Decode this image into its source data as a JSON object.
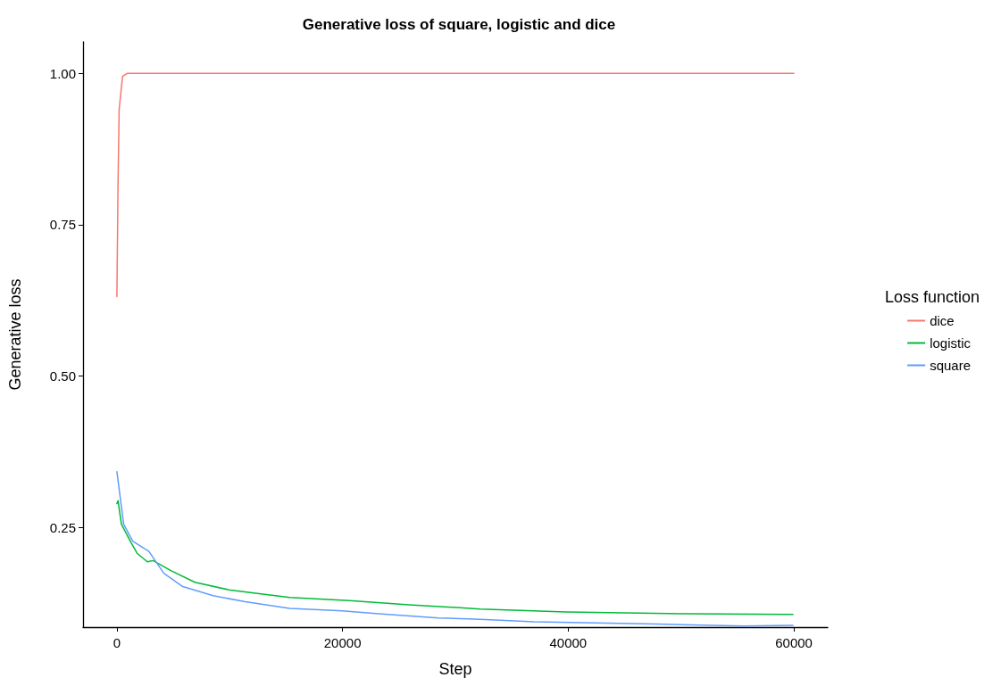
{
  "chart_data": {
    "type": "line",
    "title": "Generative loss of square, logistic and dice",
    "xlabel": "Step",
    "ylabel": "Generative loss",
    "legend_title": "Loss function",
    "legend": "right",
    "grid": false,
    "marker": "none",
    "line_style": "solid",
    "xlim": [
      -3000,
      63000
    ],
    "xticks": [
      0,
      20000,
      40000,
      60000
    ],
    "ylim": [
      0.085,
      1.052
    ],
    "yticks": [
      {
        "value": 0.25,
        "label": "0.25"
      },
      {
        "value": 0.5,
        "label": "0.50"
      },
      {
        "value": 0.75,
        "label": "0.75"
      },
      {
        "value": 1,
        "label": "1.00"
      }
    ],
    "series": [
      {
        "name": "dice",
        "color": "#f8766d",
        "x": [
          0,
          100,
          200,
          500,
          900,
          2000,
          60000
        ],
        "values": [
          0.631,
          0.816,
          0.94,
          0.995,
          1.0,
          1.0,
          1.0
        ]
      },
      {
        "name": "logistic",
        "color": "#00ba38",
        "x": [
          0,
          100,
          400,
          1250,
          1790,
          2700,
          3200,
          4820,
          6920,
          10080,
          15320,
          20600,
          25890,
          32200,
          39790,
          50370,
          59920
        ],
        "values": [
          0.289,
          0.294,
          0.255,
          0.225,
          0.207,
          0.193,
          0.195,
          0.178,
          0.159,
          0.146,
          0.134,
          0.129,
          0.122,
          0.115,
          0.11,
          0.107,
          0.106
        ]
      },
      {
        "name": "square",
        "color": "#619cff",
        "x": [
          0,
          600,
          1400,
          2840,
          4160,
          5840,
          8530,
          11370,
          15320,
          19970,
          23200,
          28500,
          32200,
          36950,
          47680,
          55580,
          59920
        ],
        "values": [
          0.342,
          0.255,
          0.227,
          0.21,
          0.174,
          0.152,
          0.137,
          0.127,
          0.116,
          0.112,
          0.107,
          0.1,
          0.098,
          0.094,
          0.09,
          0.087,
          0.088
        ]
      }
    ]
  }
}
